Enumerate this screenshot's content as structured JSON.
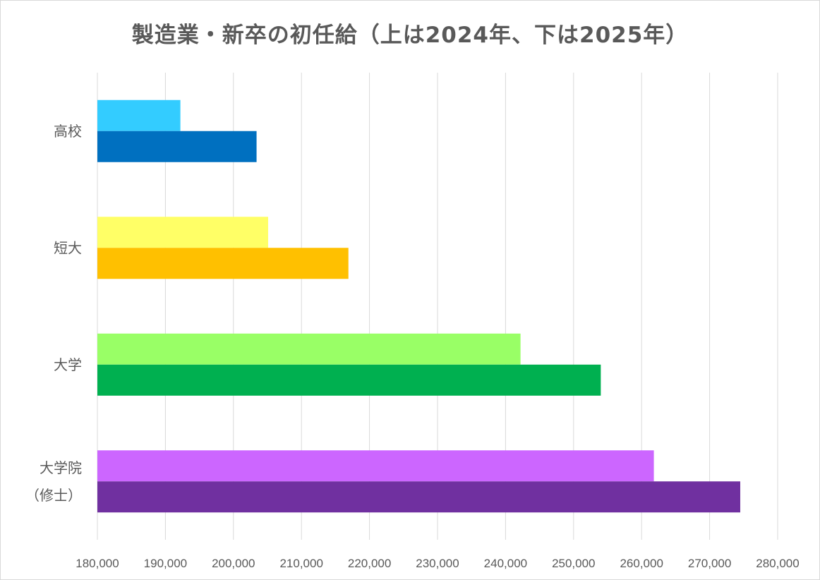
{
  "chart_data": {
    "type": "bar",
    "orientation": "horizontal",
    "title": "製造業・新卒の初任給（上は2024年、下は2025年）",
    "xlabel": "",
    "ylabel": "",
    "xlim": [
      180000,
      280000
    ],
    "x_ticks": [
      180000,
      190000,
      200000,
      210000,
      220000,
      230000,
      240000,
      250000,
      260000,
      270000,
      280000
    ],
    "x_tick_labels": [
      "180,000",
      "190,000",
      "200,000",
      "210,000",
      "220,000",
      "230,000",
      "240,000",
      "250,000",
      "260,000",
      "270,000",
      "280,000"
    ],
    "grid": "vertical",
    "legend": "none",
    "categories": [
      {
        "label_lines": [
          "高校"
        ],
        "bars": [
          {
            "year": "2024",
            "value": 192200,
            "color": "#33CCFF"
          },
          {
            "year": "2025",
            "value": 203400,
            "color": "#0070C0"
          }
        ]
      },
      {
        "label_lines": [
          "短大"
        ],
        "bars": [
          {
            "year": "2024",
            "value": 205100,
            "color": "#FFFF66"
          },
          {
            "year": "2025",
            "value": 216900,
            "color": "#FFC000"
          }
        ]
      },
      {
        "label_lines": [
          "大学"
        ],
        "bars": [
          {
            "year": "2024",
            "value": 242200,
            "color": "#99FF66"
          },
          {
            "year": "2025",
            "value": 254000,
            "color": "#00B050"
          }
        ]
      },
      {
        "label_lines": [
          "大学院",
          "（修士）"
        ],
        "bars": [
          {
            "year": "2024",
            "value": 261800,
            "color": "#CC66FF"
          },
          {
            "year": "2025",
            "value": 274500,
            "color": "#7030A0"
          }
        ]
      }
    ]
  }
}
